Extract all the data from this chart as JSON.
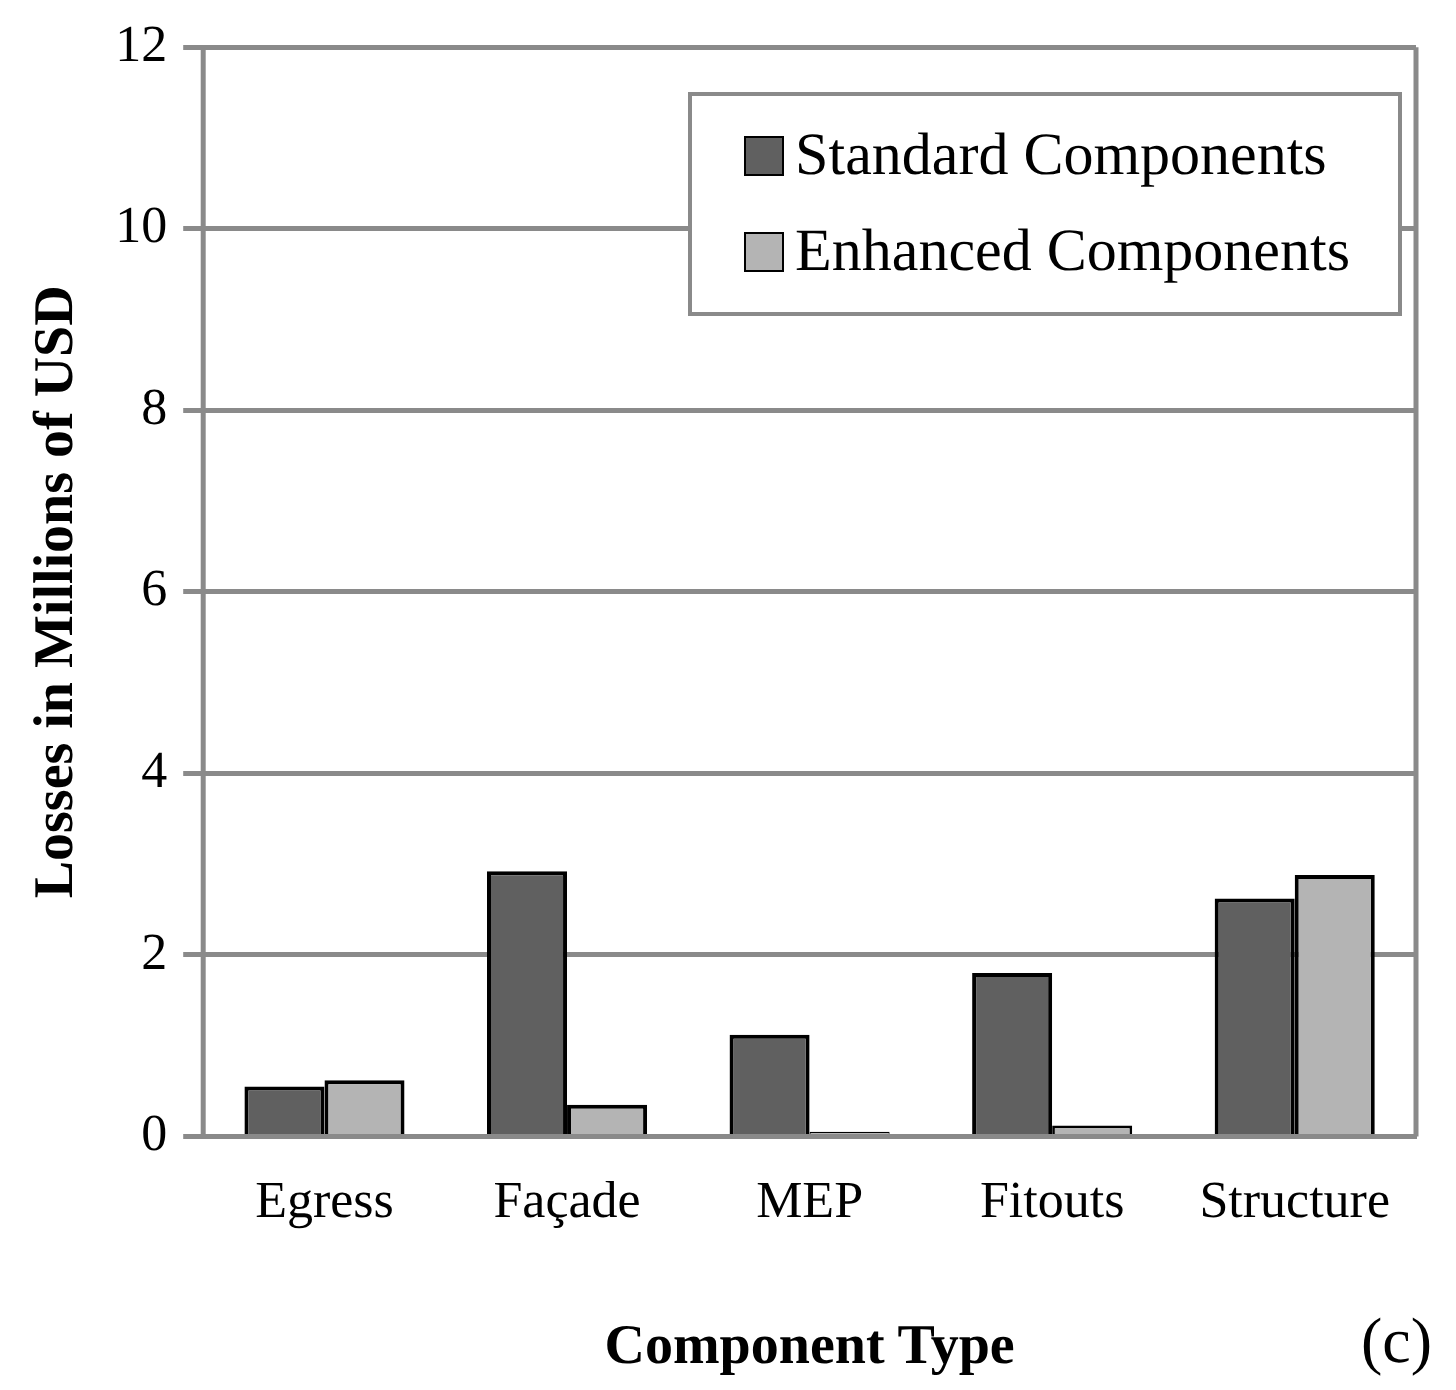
{
  "chart_data": {
    "type": "bar",
    "xlabel": "Component Type",
    "ylabel": "Losses in Millions of USD",
    "categories": [
      "Egress",
      "Façade",
      "MEP",
      "Fitouts",
      "Structure"
    ],
    "series": [
      {
        "name": "Standard Components",
        "color": "#606060",
        "values": [
          0.55,
          2.92,
          1.12,
          1.8,
          2.62
        ]
      },
      {
        "name": "Enhanced Components",
        "color": "#b4b4b4",
        "values": [
          0.62,
          0.35,
          0.05,
          0.12,
          2.88
        ]
      }
    ],
    "ylim": [
      0,
      12
    ],
    "yticks": [
      0,
      2,
      4,
      6,
      8,
      10,
      12
    ],
    "grid": "y",
    "legend": "top right",
    "annotations": [
      "(c)"
    ]
  }
}
